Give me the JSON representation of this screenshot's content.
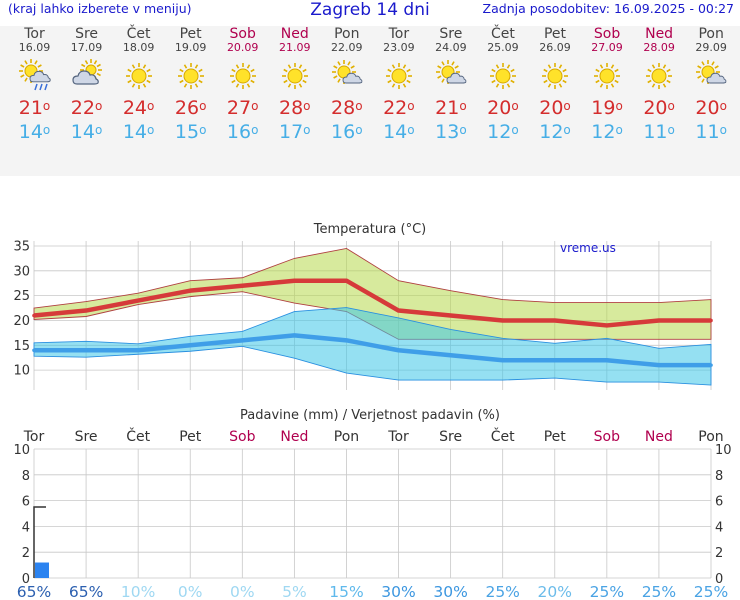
{
  "header": {
    "left_note": "(kraj lahko izberete v meniju)",
    "title": "Zagreb 14 dni",
    "right_note": "Zadnja posodobitev: 16.09.2025 - 00:27"
  },
  "colors": {
    "max_temp": "#d42d2d",
    "min_temp": "#46aee6",
    "weekend": "#b0004e",
    "link": "#1a1acc",
    "precip_bar": "#2b83f0"
  },
  "days": [
    {
      "name": "Tor",
      "date": "16.09",
      "weekend": false,
      "icon": "sun-cloud-rain-icon",
      "max": "21",
      "min": "14"
    },
    {
      "name": "Sre",
      "date": "17.09",
      "weekend": false,
      "icon": "cloud-sun-icon",
      "max": "22",
      "min": "14"
    },
    {
      "name": "Čet",
      "date": "18.09",
      "weekend": false,
      "icon": "sun-icon",
      "max": "24",
      "min": "14"
    },
    {
      "name": "Pet",
      "date": "19.09",
      "weekend": false,
      "icon": "sun-icon",
      "max": "26",
      "min": "15"
    },
    {
      "name": "Sob",
      "date": "20.09",
      "weekend": true,
      "icon": "sun-icon",
      "max": "27",
      "min": "16"
    },
    {
      "name": "Ned",
      "date": "21.09",
      "weekend": true,
      "icon": "sun-icon",
      "max": "28",
      "min": "17"
    },
    {
      "name": "Pon",
      "date": "22.09",
      "weekend": false,
      "icon": "sun-cloud-icon",
      "max": "28",
      "min": "16"
    },
    {
      "name": "Tor",
      "date": "23.09",
      "weekend": false,
      "icon": "sun-icon",
      "max": "22",
      "min": "14"
    },
    {
      "name": "Sre",
      "date": "24.09",
      "weekend": false,
      "icon": "sun-cloud-icon",
      "max": "21",
      "min": "13"
    },
    {
      "name": "Čet",
      "date": "25.09",
      "weekend": false,
      "icon": "sun-icon",
      "max": "20",
      "min": "12"
    },
    {
      "name": "Pet",
      "date": "26.09",
      "weekend": false,
      "icon": "sun-icon",
      "max": "20",
      "min": "12"
    },
    {
      "name": "Sob",
      "date": "27.09",
      "weekend": true,
      "icon": "sun-icon",
      "max": "19",
      "min": "12"
    },
    {
      "name": "Ned",
      "date": "28.09",
      "weekend": true,
      "icon": "sun-icon",
      "max": "20",
      "min": "11"
    },
    {
      "name": "Pon",
      "date": "29.09",
      "weekend": false,
      "icon": "sun-cloud-icon",
      "max": "20",
      "min": "11"
    }
  ],
  "chart_data": [
    {
      "type": "line",
      "title": "Temperatura (°C)",
      "watermark": "vreme.us",
      "x": [
        "Tor",
        "Sre",
        "Čet",
        "Pet",
        "Sob",
        "Ned",
        "Pon",
        "Tor",
        "Sre",
        "Čet",
        "Pet",
        "Sob",
        "Ned",
        "Pon"
      ],
      "ylim": [
        6,
        36
      ],
      "yticks": [
        10,
        15,
        20,
        25,
        30,
        35
      ],
      "series": [
        {
          "role": "max",
          "values": [
            21,
            22,
            24,
            26,
            27,
            28,
            28,
            22,
            21,
            20,
            20,
            19,
            20,
            20
          ]
        },
        {
          "role": "max_band_upper",
          "values": [
            22.5,
            23.8,
            25.5,
            28,
            28.6,
            32.5,
            34.5,
            28,
            26,
            24.2,
            23.6,
            23.6,
            23.6,
            24.2
          ]
        },
        {
          "role": "max_band_lower",
          "values": [
            20.2,
            20.8,
            23.2,
            24.8,
            25.8,
            23.5,
            21.8,
            16.2,
            16.2,
            16.2,
            16.2,
            16.2,
            16.2,
            16.2
          ]
        },
        {
          "role": "min",
          "values": [
            14,
            14,
            14,
            15,
            16,
            17,
            16,
            14,
            13,
            12,
            12,
            12,
            11,
            11
          ]
        },
        {
          "role": "min_band_upper",
          "values": [
            15.5,
            15.8,
            15.3,
            16.8,
            17.8,
            21.8,
            22.6,
            20.5,
            18.2,
            16.4,
            15.4,
            16.4,
            14.4,
            15.2
          ]
        },
        {
          "role": "min_band_lower",
          "values": [
            12.8,
            12.6,
            13.2,
            13.8,
            14.8,
            12.4,
            9.4,
            8.0,
            8.0,
            8.0,
            8.4,
            7.6,
            7.6,
            7.0
          ]
        }
      ],
      "grid": true
    },
    {
      "type": "bar",
      "title": "Padavine (mm) / Verjetnost padavin (%)",
      "categories": [
        "Tor",
        "Sre",
        "Čet",
        "Pet",
        "Sob",
        "Ned",
        "Pon",
        "Tor",
        "Sre",
        "Čet",
        "Pet",
        "Sob",
        "Ned",
        "Pon"
      ],
      "weekend": [
        false,
        false,
        false,
        false,
        true,
        true,
        false,
        false,
        false,
        false,
        false,
        true,
        true,
        false
      ],
      "values": [
        1.2,
        0,
        0,
        0,
        0,
        0,
        0,
        0,
        0,
        0,
        0,
        0,
        0,
        0
      ],
      "max_values": [
        5.5,
        0,
        0,
        0,
        0,
        0,
        0,
        0,
        0,
        0,
        0,
        0,
        0,
        0
      ],
      "probability": [
        "65%",
        "65%",
        "10%",
        "0%",
        "0%",
        "5%",
        "15%",
        "30%",
        "30%",
        "25%",
        "20%",
        "25%",
        "25%",
        "25%"
      ],
      "probability_colors": [
        "#2b5fb0",
        "#2b5fb0",
        "#9fd8f2",
        "#9fd8f2",
        "#9fd8f2",
        "#9fd8f2",
        "#5fb9ec",
        "#3d97e0",
        "#3d97e0",
        "#4aa3e4",
        "#6cbcea",
        "#4aa3e4",
        "#4aa3e4",
        "#4aa3e4"
      ],
      "ylim": [
        0,
        10
      ],
      "yticks": [
        0,
        2,
        4,
        6,
        8,
        10
      ],
      "grid": true
    }
  ]
}
